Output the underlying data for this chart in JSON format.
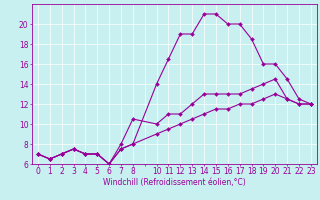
{
  "xlabel": "Windchill (Refroidissement éolien,°C)",
  "bg_color": "#c8f0f0",
  "line_color": "#990099",
  "grid_color": "#ffffff",
  "x_values": [
    0,
    1,
    2,
    3,
    4,
    5,
    6,
    7,
    8,
    10,
    11,
    12,
    13,
    14,
    15,
    16,
    17,
    18,
    19,
    20,
    21,
    22,
    23
  ],
  "line1_y": [
    7,
    6.5,
    7,
    7.5,
    7,
    7,
    6,
    7.5,
    8,
    14,
    16.5,
    19,
    19,
    21,
    21,
    20,
    20,
    18.5,
    16,
    16,
    14.5,
    12.5,
    12
  ],
  "line2_y": [
    7,
    6.5,
    7,
    7.5,
    7,
    7,
    6,
    8,
    10.5,
    10,
    11,
    11,
    12,
    13,
    13,
    13,
    13,
    13.5,
    14,
    14.5,
    12.5,
    12,
    12
  ],
  "line3_y": [
    7,
    6.5,
    7,
    7.5,
    7,
    7,
    6,
    7.5,
    8,
    9,
    9.5,
    10,
    10.5,
    11,
    11.5,
    11.5,
    12,
    12,
    12.5,
    13,
    12.5,
    12,
    12
  ],
  "ylim": [
    6,
    22
  ],
  "yticks": [
    6,
    8,
    10,
    12,
    14,
    16,
    18,
    20
  ],
  "xlim": [
    -0.5,
    23.5
  ],
  "xtick_labels": [
    "0",
    "1",
    "2",
    "3",
    "4",
    "5",
    "6",
    "7",
    "8",
    "",
    "10",
    "11",
    "12",
    "13",
    "14",
    "15",
    "16",
    "17",
    "18",
    "19",
    "20",
    "21",
    "22",
    "23"
  ],
  "axis_fontsize": 5.5,
  "tick_fontsize": 5.5,
  "marker": "D",
  "markersize": 2.0,
  "linewidth": 0.8
}
